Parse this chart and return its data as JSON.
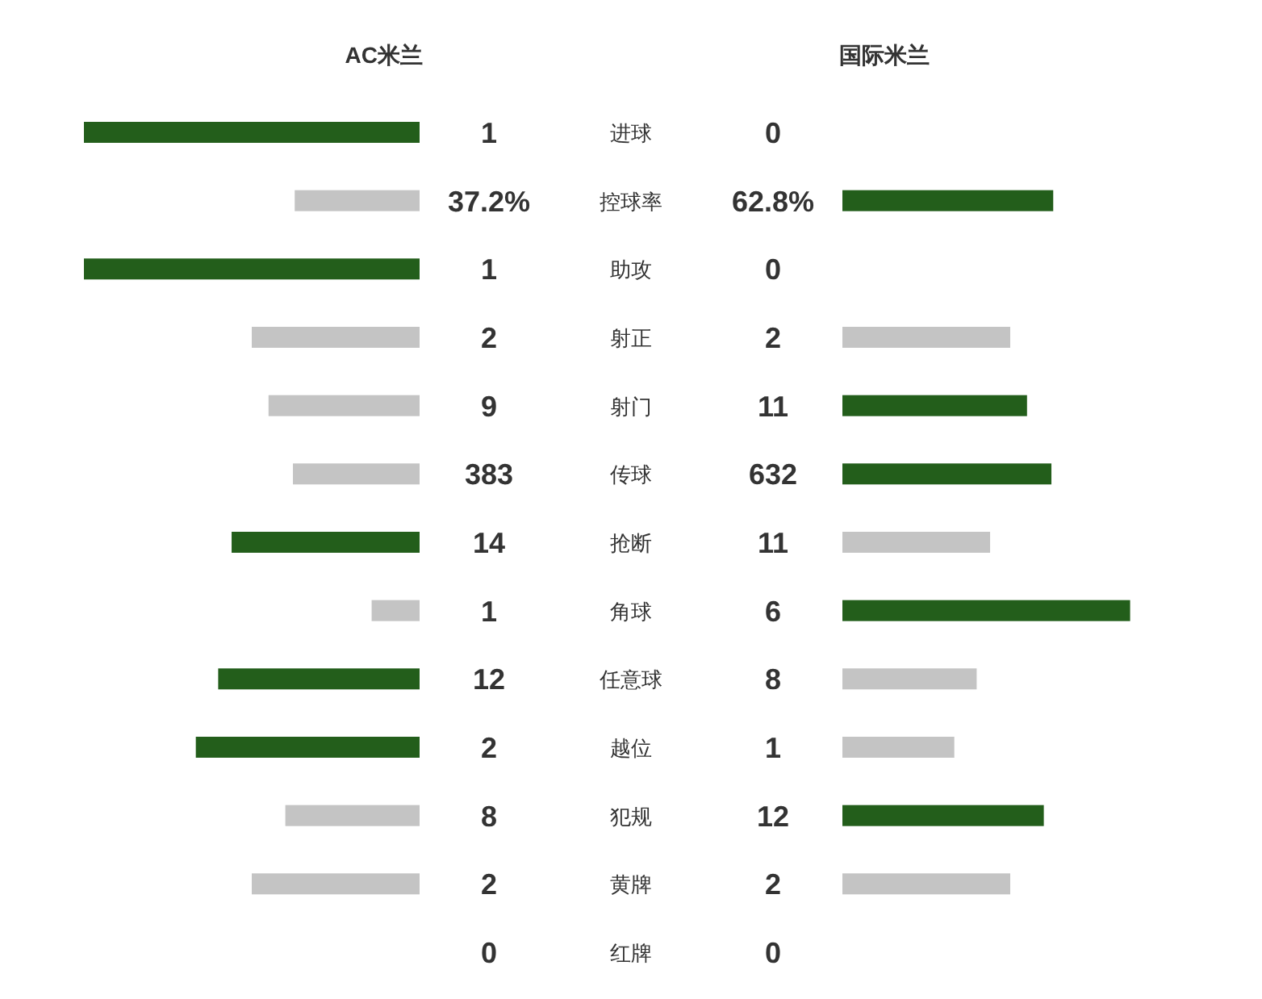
{
  "chart_data": {
    "type": "other",
    "categories": [
      "进球",
      "控球率",
      "助攻",
      "射正",
      "射门",
      "传球",
      "抢断",
      "角球",
      "任意球",
      "越位",
      "犯规",
      "黄牌",
      "红牌"
    ],
    "series": [
      {
        "name": "AC米兰",
        "values": [
          1,
          37.2,
          1,
          2,
          9,
          383,
          14,
          1,
          12,
          2,
          8,
          2,
          0
        ],
        "value_labels": [
          "1",
          "37.2%",
          "1",
          "2",
          "9",
          "383",
          "14",
          "1",
          "12",
          "2",
          "8",
          "2",
          "0"
        ],
        "colors": [
          "#235e1b",
          "#c4c4c4",
          "#235e1b",
          "#c4c4c4",
          "#c4c4c4",
          "#c4c4c4",
          "#235e1b",
          "#c4c4c4",
          "#235e1b",
          "#235e1b",
          "#c4c4c4",
          "#c4c4c4",
          "#c4c4c4"
        ]
      },
      {
        "name": "国际米兰",
        "values": [
          0,
          62.8,
          0,
          2,
          11,
          632,
          11,
          6,
          8,
          1,
          12,
          2,
          0
        ],
        "value_labels": [
          "0",
          "62.8%",
          "0",
          "2",
          "11",
          "632",
          "11",
          "6",
          "8",
          "1",
          "12",
          "2",
          "0"
        ],
        "colors": [
          "#c4c4c4",
          "#235e1b",
          "#c4c4c4",
          "#c4c4c4",
          "#235e1b",
          "#235e1b",
          "#c4c4c4",
          "#235e1b",
          "#c4c4c4",
          "#c4c4c4",
          "#235e1b",
          "#c4c4c4",
          "#c4c4c4"
        ]
      }
    ]
  }
}
